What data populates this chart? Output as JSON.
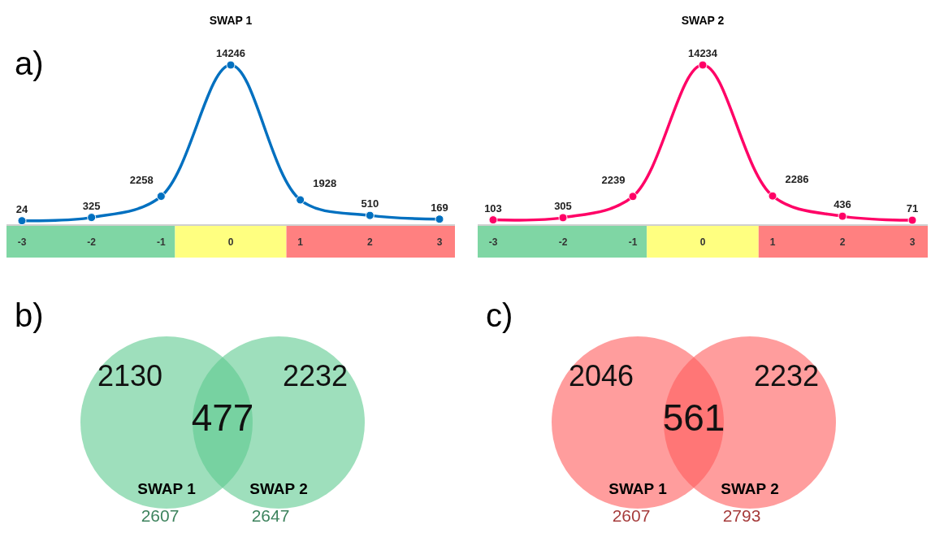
{
  "chart_data": [
    {
      "type": "line",
      "title": "SWAP 1",
      "annotations": [
        "a)"
      ],
      "categories": [
        "-3",
        "-2",
        "-1",
        "0",
        "1",
        "2",
        "3"
      ],
      "series": [
        {
          "color": "#0070c0",
          "values": [
            24,
            325,
            2258,
            14246,
            1928,
            510,
            169
          ]
        }
      ],
      "data_labels": true,
      "marker": "circle"
    },
    {
      "type": "line",
      "title": "SWAP 2",
      "categories": [
        "-3",
        "-2",
        "-1",
        "0",
        "1",
        "2",
        "3"
      ],
      "series": [
        {
          "color": "#ff0066",
          "values": [
            103,
            305,
            2239,
            14234,
            2286,
            436,
            71
          ]
        }
      ],
      "data_labels": true,
      "marker": "circle"
    },
    {
      "type": "other",
      "annotations": [
        "b)",
        "477"
      ],
      "categories": [
        "SWAP 1",
        "SWAP 2"
      ],
      "values": [
        2130,
        2232
      ],
      "data_labels": true,
      "colors": [
        "#5ec98f",
        "#5ec98f"
      ],
      "totals": [
        "2607",
        "2647"
      ]
    },
    {
      "type": "other",
      "annotations": [
        "c)",
        "561"
      ],
      "categories": [
        "SWAP 1",
        "SWAP 2"
      ],
      "values": [
        2046,
        2232
      ],
      "data_labels": true,
      "colors": [
        "#ff5c5c",
        "#ff5c5c"
      ],
      "totals": [
        "2607",
        "2793"
      ]
    }
  ]
}
